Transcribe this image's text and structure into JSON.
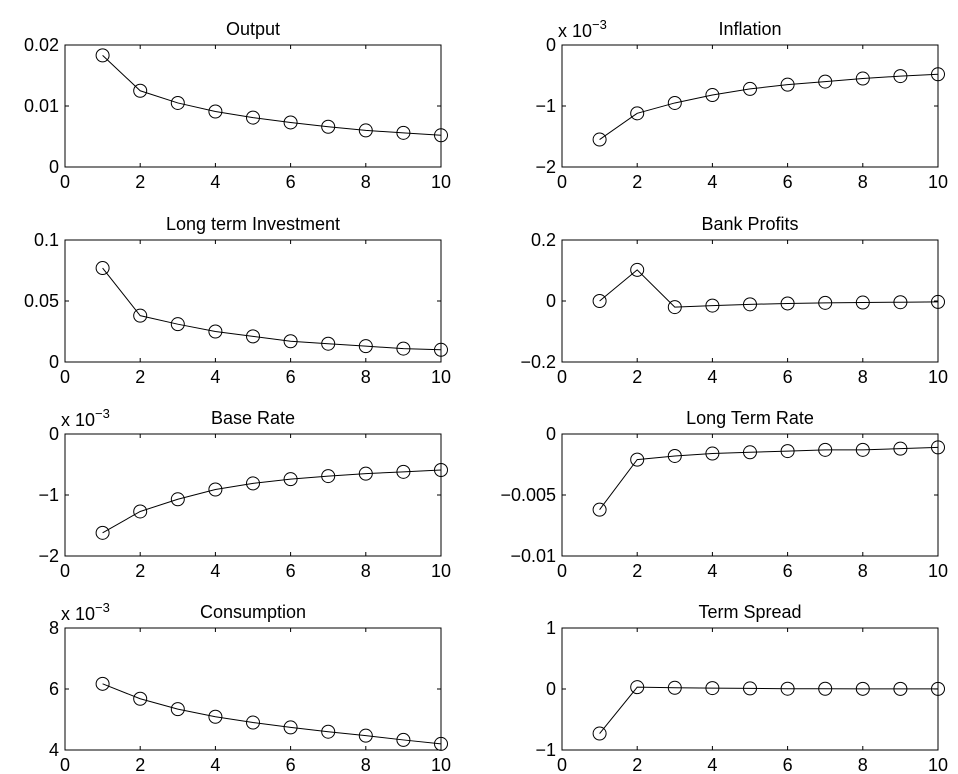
{
  "chart_data": [
    {
      "type": "line",
      "title": "Output",
      "x": [
        1,
        2,
        3,
        4,
        5,
        6,
        7,
        8,
        9,
        10
      ],
      "y": [
        0.0183,
        0.0125,
        0.0105,
        0.0091,
        0.0081,
        0.0073,
        0.0066,
        0.006,
        0.0056,
        0.0052
      ],
      "xlim": [
        0,
        10
      ],
      "ylim": [
        0,
        0.02
      ],
      "xticks": [
        0,
        2,
        4,
        6,
        8,
        10
      ],
      "xtick_labels": [
        "0",
        "2",
        "4",
        "6",
        "8",
        "10"
      ],
      "yticks": [
        0,
        0.01,
        0.02
      ],
      "ytick_labels": [
        "0",
        "0.01",
        "0.02"
      ],
      "exponent_label": "",
      "marker": "circle",
      "grid": false
    },
    {
      "type": "line",
      "title": "Inflation",
      "x": [
        1,
        2,
        3,
        4,
        5,
        6,
        7,
        8,
        9,
        10
      ],
      "y": [
        -0.00155,
        -0.00112,
        -0.00095,
        -0.00082,
        -0.00072,
        -0.00065,
        -0.0006,
        -0.00055,
        -0.00051,
        -0.00048
      ],
      "xlim": [
        0,
        10
      ],
      "ylim": [
        -0.002,
        0
      ],
      "xticks": [
        0,
        2,
        4,
        6,
        8,
        10
      ],
      "xtick_labels": [
        "0",
        "2",
        "4",
        "6",
        "8",
        "10"
      ],
      "yticks": [
        -0.002,
        -0.001,
        0
      ],
      "ytick_labels": [
        "−2",
        "−1",
        "0"
      ],
      "exponent_label": "x 10",
      "exponent": "−3",
      "marker": "circle",
      "grid": false
    },
    {
      "type": "line",
      "title": "Long term Investment",
      "x": [
        1,
        2,
        3,
        4,
        5,
        6,
        7,
        8,
        9,
        10
      ],
      "y": [
        0.077,
        0.038,
        0.031,
        0.025,
        0.021,
        0.017,
        0.015,
        0.013,
        0.011,
        0.01
      ],
      "xlim": [
        0,
        10
      ],
      "ylim": [
        0,
        0.1
      ],
      "xticks": [
        0,
        2,
        4,
        6,
        8,
        10
      ],
      "xtick_labels": [
        "0",
        "2",
        "4",
        "6",
        "8",
        "10"
      ],
      "yticks": [
        0,
        0.05,
        0.1
      ],
      "ytick_labels": [
        "0",
        "0.05",
        "0.1"
      ],
      "exponent_label": "",
      "marker": "circle",
      "grid": false
    },
    {
      "type": "line",
      "title": "Bank Profits",
      "x": [
        1,
        2,
        3,
        4,
        5,
        6,
        7,
        8,
        9,
        10
      ],
      "y": [
        0.0,
        0.102,
        -0.02,
        -0.015,
        -0.011,
        -0.008,
        -0.006,
        -0.005,
        -0.004,
        -0.003
      ],
      "xlim": [
        0,
        10
      ],
      "ylim": [
        -0.2,
        0.2
      ],
      "xticks": [
        0,
        2,
        4,
        6,
        8,
        10
      ],
      "xtick_labels": [
        "0",
        "2",
        "4",
        "6",
        "8",
        "10"
      ],
      "yticks": [
        -0.2,
        0,
        0.2
      ],
      "ytick_labels": [
        "−0.2",
        "0",
        "0.2"
      ],
      "exponent_label": "",
      "marker": "circle",
      "grid": false
    },
    {
      "type": "line",
      "title": "Base Rate",
      "x": [
        1,
        2,
        3,
        4,
        5,
        6,
        7,
        8,
        9,
        10
      ],
      "y": [
        -0.00162,
        -0.00127,
        -0.00107,
        -0.00091,
        -0.00081,
        -0.00074,
        -0.00069,
        -0.00065,
        -0.00062,
        -0.00059
      ],
      "xlim": [
        0,
        10
      ],
      "ylim": [
        -0.002,
        0
      ],
      "xticks": [
        0,
        2,
        4,
        6,
        8,
        10
      ],
      "xtick_labels": [
        "0",
        "2",
        "4",
        "6",
        "8",
        "10"
      ],
      "yticks": [
        -0.002,
        -0.001,
        0
      ],
      "ytick_labels": [
        "−2",
        "−1",
        "0"
      ],
      "exponent_label": "x 10",
      "exponent": "−3",
      "marker": "circle",
      "grid": false
    },
    {
      "type": "line",
      "title": "Long Term Rate",
      "x": [
        1,
        2,
        3,
        4,
        5,
        6,
        7,
        8,
        9,
        10
      ],
      "y": [
        -0.0062,
        -0.0021,
        -0.0018,
        -0.0016,
        -0.0015,
        -0.0014,
        -0.0013,
        -0.0013,
        -0.0012,
        -0.0011
      ],
      "xlim": [
        0,
        10
      ],
      "ylim": [
        -0.01,
        0
      ],
      "xticks": [
        0,
        2,
        4,
        6,
        8,
        10
      ],
      "xtick_labels": [
        "0",
        "2",
        "4",
        "6",
        "8",
        "10"
      ],
      "yticks": [
        -0.01,
        -0.005,
        0
      ],
      "ytick_labels": [
        "−0.01",
        "−0.005",
        "0"
      ],
      "exponent_label": "",
      "marker": "circle",
      "grid": false
    },
    {
      "type": "line",
      "title": "Consumption",
      "x": [
        1,
        2,
        3,
        4,
        5,
        6,
        7,
        8,
        9,
        10
      ],
      "y": [
        0.00617,
        0.00568,
        0.00534,
        0.00509,
        0.0049,
        0.00474,
        0.0046,
        0.00447,
        0.00433,
        0.0042
      ],
      "xlim": [
        0,
        10
      ],
      "ylim": [
        0.004,
        0.008
      ],
      "xticks": [
        0,
        2,
        4,
        6,
        8,
        10
      ],
      "xtick_labels": [
        "0",
        "2",
        "4",
        "6",
        "8",
        "10"
      ],
      "yticks": [
        0.004,
        0.006,
        0.008
      ],
      "ytick_labels": [
        "4",
        "6",
        "8"
      ],
      "exponent_label": "x 10",
      "exponent": "−3",
      "marker": "circle",
      "grid": false
    },
    {
      "type": "line",
      "title": "Term Spread",
      "x": [
        1,
        2,
        3,
        4,
        5,
        6,
        7,
        8,
        9,
        10
      ],
      "y": [
        -0.73,
        0.03,
        0.02,
        0.015,
        0.01,
        0.005,
        0.004,
        0.003,
        0.002,
        0.002
      ],
      "xlim": [
        0,
        10
      ],
      "ylim": [
        -1,
        1
      ],
      "xticks": [
        0,
        2,
        4,
        6,
        8,
        10
      ],
      "xtick_labels": [
        "0",
        "2",
        "4",
        "6",
        "8",
        "10"
      ],
      "yticks": [
        -1,
        0,
        1
      ],
      "ytick_labels": [
        "−1",
        "0",
        "1"
      ],
      "exponent_label": "",
      "marker": "circle",
      "grid": false
    }
  ]
}
